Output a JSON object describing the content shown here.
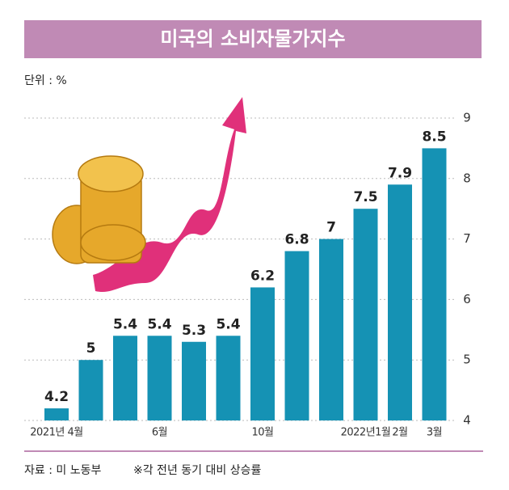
{
  "chart_data": {
    "type": "bar",
    "title": "미국의 소비자물가지수",
    "unit_label": "단위 : %",
    "source": "자료 : 미 노동부",
    "note": "※각 전년 동기 대비 상승률",
    "categories": [
      "2021년 4월",
      null,
      null,
      "6월",
      null,
      null,
      "10월",
      null,
      null,
      "2022년1월",
      "2월",
      "3월"
    ],
    "values": [
      4.2,
      5,
      5.4,
      5.4,
      5.3,
      5.4,
      6.2,
      6.8,
      7,
      7.5,
      7.9,
      8.5
    ],
    "color": "#1592b4",
    "ylim": [
      4,
      9
    ],
    "yticks": [
      4,
      5,
      6,
      7,
      8,
      9
    ],
    "grid": true
  }
}
